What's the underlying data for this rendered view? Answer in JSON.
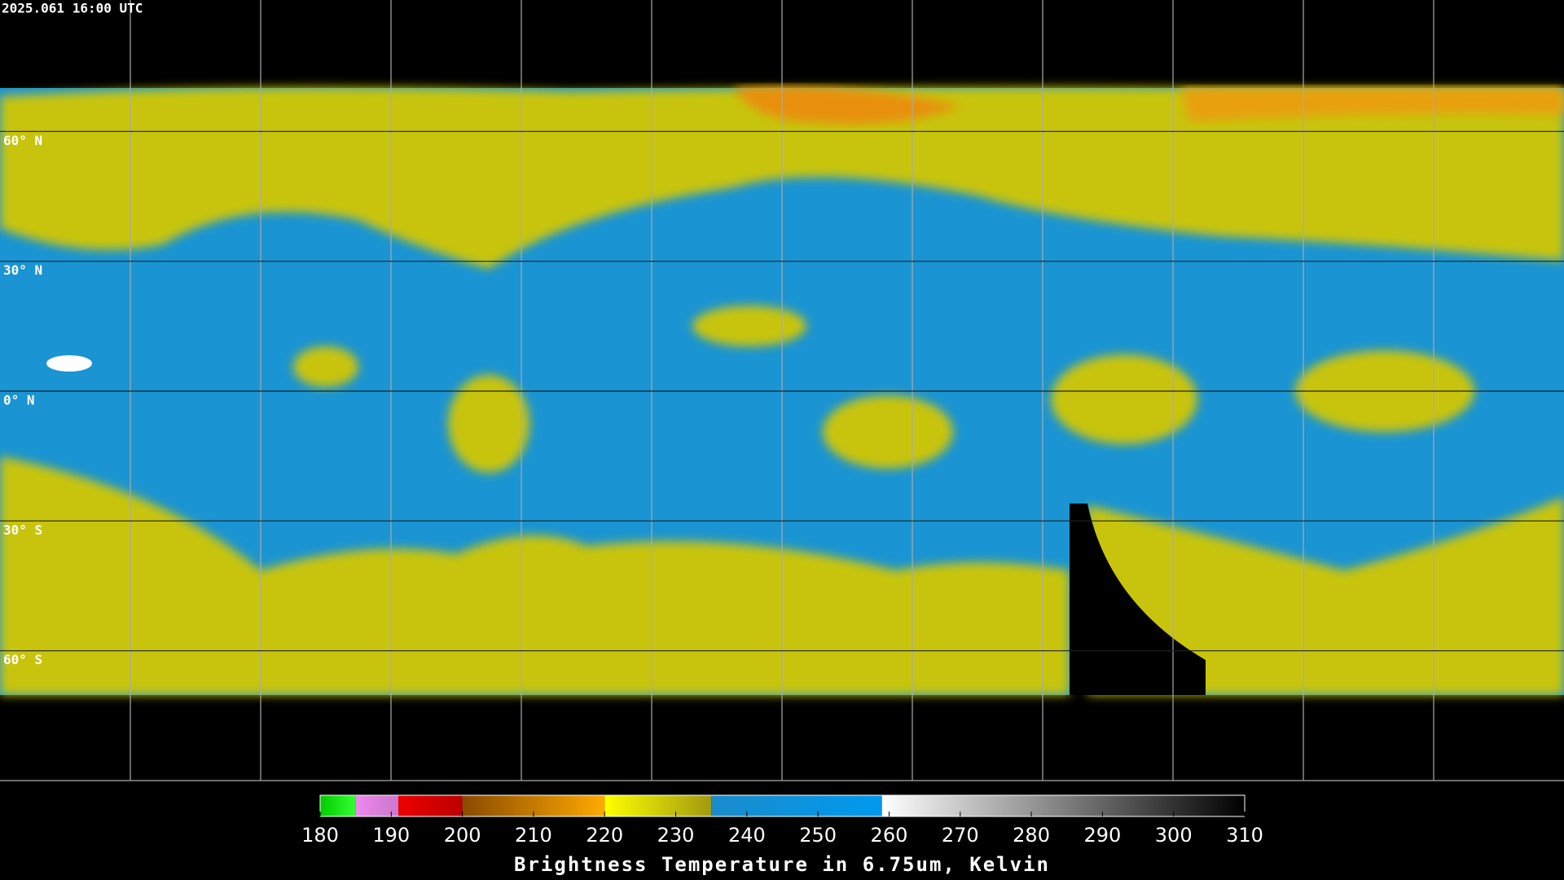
{
  "timestamp": "2025.061 16:00 UTC",
  "lat_lines": [
    {
      "value": 60,
      "label": "60° N"
    },
    {
      "value": 30,
      "label": "30° N"
    },
    {
      "value": 0,
      "label": "0° N"
    },
    {
      "value": -30,
      "label": "30° S"
    },
    {
      "value": -60,
      "label": "60° S"
    }
  ],
  "colorbar": {
    "title": "Brightness Temperature in 6.75um, Kelvin",
    "range": [
      180,
      310
    ],
    "ticks": [
      180,
      190,
      200,
      210,
      220,
      230,
      240,
      250,
      260,
      270,
      280,
      290,
      300,
      310
    ],
    "segments": [
      {
        "from": 180,
        "to": 185,
        "colors": [
          "#00cc00",
          "#33ff33"
        ]
      },
      {
        "from": 185,
        "to": 191,
        "colors": [
          "#ee88ee",
          "#cc77cc"
        ]
      },
      {
        "from": 191,
        "to": 200,
        "colors": [
          "#ee0000",
          "#bb0000"
        ]
      },
      {
        "from": 200,
        "to": 220,
        "colors": [
          "#8a4a00",
          "#ffaa00"
        ]
      },
      {
        "from": 220,
        "to": 235,
        "colors": [
          "#ffff00",
          "#a09a10"
        ]
      },
      {
        "from": 235,
        "to": 259,
        "colors": [
          "#1a8ccc",
          "#0099ee"
        ]
      },
      {
        "from": 259,
        "to": 310,
        "colors": [
          "#ffffff",
          "#000000"
        ]
      }
    ]
  }
}
